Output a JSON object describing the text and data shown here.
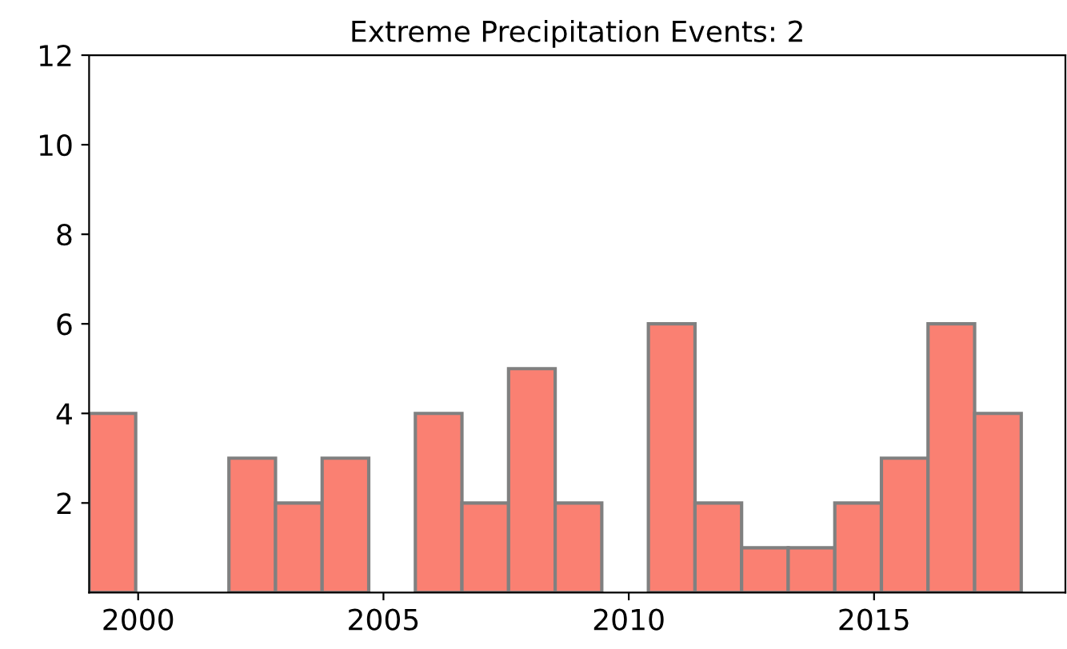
{
  "chart_data": {
    "type": "histogram",
    "title": "Extreme Precipitation Events: 2",
    "bins": [
      1999,
      1999.95,
      2000.9,
      2001.85,
      2002.8,
      2003.75,
      2004.7,
      2005.65,
      2006.6,
      2007.55,
      2008.5,
      2009.45,
      2010.4,
      2011.35,
      2012.3,
      2013.25,
      2014.2,
      2015.15,
      2016.1,
      2017.05,
      2018
    ],
    "values": [
      4,
      0,
      0,
      3,
      2,
      3,
      0,
      4,
      2,
      5,
      2,
      0,
      6,
      2,
      1,
      1,
      2,
      3,
      6,
      4
    ],
    "color": "#fa8072",
    "xlim": [
      1999,
      2018.9
    ],
    "xticks": [
      2000,
      2005,
      2010,
      2015
    ],
    "ylim": [
      0,
      12
    ],
    "yticks": [
      2,
      4,
      6,
      8,
      10,
      12
    ],
    "grid": false
  }
}
